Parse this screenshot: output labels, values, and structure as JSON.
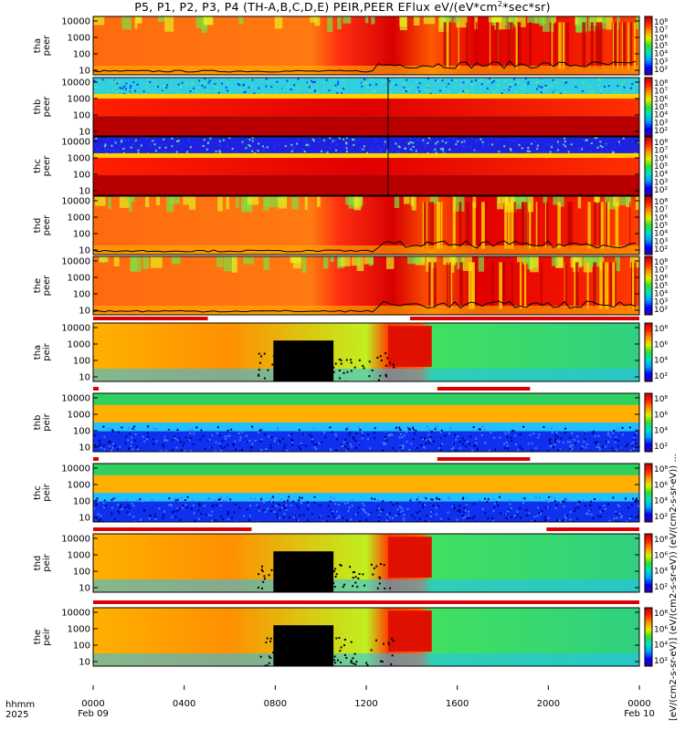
{
  "title": {
    "main": "P5, P1, P2, P3, P4 (TH-A,B,C,D,E) PEIR,PEER EFlux eV/(eV*cm",
    "sup": "2",
    "tail": "*sec*sr)"
  },
  "time_label": "hhmm",
  "year_label": "2025",
  "colorbar_label": "[eV/(cm2-s-sr-eV)] (eV/(cm2-s-sr-eV)) (eV/(cm2-s-sr-eV)) ...",
  "colors": {
    "frame": "#000000",
    "red_bar": "#dd0000",
    "black_bar": "#000000"
  },
  "chart_data": {
    "type": "heatmap",
    "x_ticks": [
      "0000",
      "0400",
      "0800",
      "1200",
      "1600",
      "2000",
      "0000"
    ],
    "x_dates": [
      "Feb 09",
      "Feb 10"
    ],
    "xlim": [
      "2025-02-09 00:00",
      "2025-02-10 00:00"
    ],
    "y_ticks": [
      "10000",
      "1000",
      "100",
      "10"
    ],
    "y_scale": "log",
    "colorbar_ticks": [
      "10⁸",
      "10⁷",
      "10⁶",
      "10⁵",
      "10⁴",
      "10³",
      "10²"
    ],
    "colorscale": [
      "#3a00a0",
      "#0000ff",
      "#00a0ff",
      "#00e0c0",
      "#30e030",
      "#e0f000",
      "#ff9000",
      "#ff2000",
      "#c00000"
    ],
    "panels": [
      {
        "id": "tha_peer",
        "label": [
          "tha",
          "peer"
        ],
        "style": "peer_active"
      },
      {
        "id": "thb_peer",
        "label": [
          "thb",
          "peer"
        ],
        "style": "peer_quiet"
      },
      {
        "id": "thc_peer",
        "label": [
          "thc",
          "peer"
        ],
        "style": "peer_quiet_blue"
      },
      {
        "id": "thd_peer",
        "label": [
          "thd",
          "peer"
        ],
        "style": "peer_active"
      },
      {
        "id": "the_peer",
        "label": [
          "the",
          "peer"
        ],
        "style": "peer_active"
      },
      {
        "id": "tha_peir",
        "label": [
          "tha",
          "peir"
        ],
        "style": "peir_active"
      },
      {
        "id": "thb_peir",
        "label": [
          "thb",
          "peir"
        ],
        "style": "peir_quiet"
      },
      {
        "id": "thc_peir",
        "label": [
          "thc",
          "peir"
        ],
        "style": "peir_quiet"
      },
      {
        "id": "thd_peir",
        "label": [
          "thd",
          "peir"
        ],
        "style": "peir_active"
      },
      {
        "id": "the_peir",
        "label": [
          "the",
          "peir"
        ],
        "style": "peir_active"
      }
    ]
  }
}
